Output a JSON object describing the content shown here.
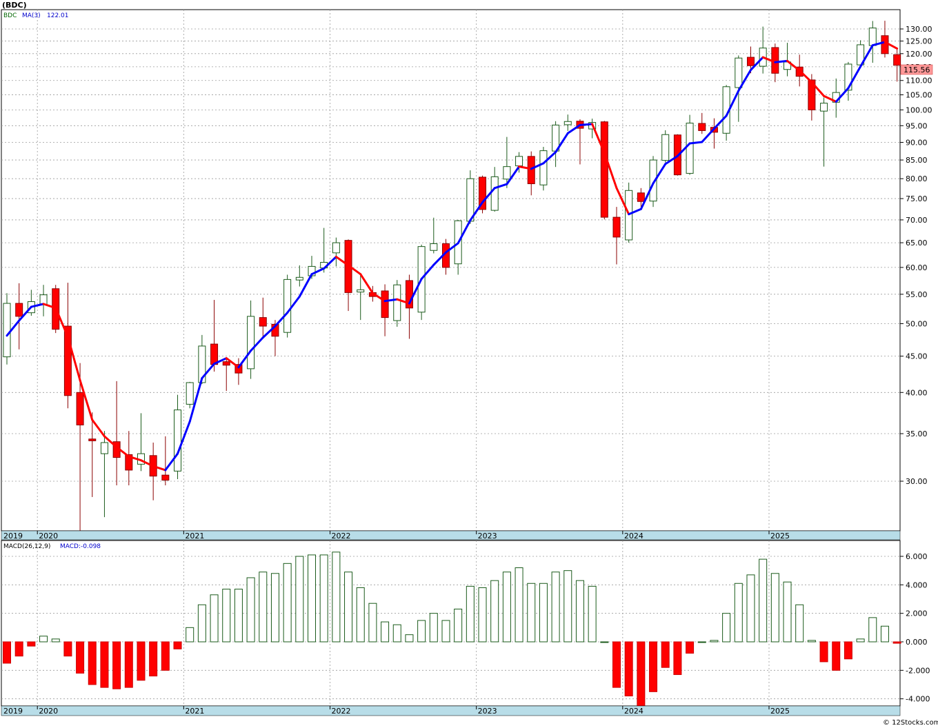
{
  "header": {
    "ticker": "(BDC)",
    "symbol": "BDC",
    "ma_label": "MA(3)",
    "ma_value": "122.01"
  },
  "macd_header": {
    "label": "MACD(26,12,9)",
    "value_label": "MACD:-0.098"
  },
  "last_price": "115.56",
  "footer": "© 12Stocks.com",
  "colors": {
    "up_border": "#1a5a1a",
    "down_fill": "#ff0000",
    "ma_up": "#0000ff",
    "ma_down": "#ff0000",
    "price_tag": "#ff9999",
    "axis_band": "#b8dde8"
  },
  "years": [
    "2019",
    "2020",
    "2021",
    "2022",
    "2023",
    "2024",
    "2025"
  ],
  "chart_data": [
    {
      "type": "candlestick",
      "title": "(BDC)",
      "scale": "log",
      "ylim": [
        25.5,
        137
      ],
      "yticks": [
        "30.00",
        "35.00",
        "40.00",
        "45.00",
        "50.00",
        "55.00",
        "60.00",
        "65.00",
        "70.00",
        "75.00",
        "80.00",
        "85.00",
        "90.00",
        "95.00",
        "100.00",
        "105.00",
        "110.00",
        "115.00",
        "120.00",
        "125.00",
        "130.00"
      ],
      "series": [
        {
          "period": "2019-10",
          "open": 44.9,
          "high": 55.2,
          "low": 43.8,
          "close": 53.4
        },
        {
          "period": "2019-11",
          "open": 53.4,
          "high": 57.0,
          "low": 46.0,
          "close": 51.2
        },
        {
          "period": "2019-12",
          "open": 51.8,
          "high": 55.8,
          "low": 51.3,
          "close": 53.7
        },
        {
          "period": "2020-01",
          "open": 53.2,
          "high": 56.7,
          "low": 51.2,
          "close": 54.9
        },
        {
          "period": "2020-02",
          "open": 56.0,
          "high": 56.7,
          "low": 48.5,
          "close": 49.1
        },
        {
          "period": "2020-03",
          "open": 49.6,
          "high": 57.1,
          "low": 38.0,
          "close": 39.6
        },
        {
          "period": "2020-04",
          "open": 40.0,
          "high": 44.0,
          "low": 25.5,
          "close": 36.0
        },
        {
          "period": "2020-05",
          "open": 34.4,
          "high": 37.5,
          "low": 28.5,
          "close": 34.2
        },
        {
          "period": "2020-06",
          "open": 32.8,
          "high": 35.3,
          "low": 26.7,
          "close": 34.0
        },
        {
          "period": "2020-07",
          "open": 34.1,
          "high": 41.5,
          "low": 29.6,
          "close": 32.4
        },
        {
          "period": "2020-08",
          "open": 32.7,
          "high": 35.3,
          "low": 29.6,
          "close": 31.1
        },
        {
          "period": "2020-09",
          "open": 31.7,
          "high": 37.4,
          "low": 31.0,
          "close": 32.8
        },
        {
          "period": "2020-10",
          "open": 32.6,
          "high": 34.0,
          "low": 28.2,
          "close": 30.5
        },
        {
          "period": "2020-11",
          "open": 30.6,
          "high": 34.7,
          "low": 29.6,
          "close": 30.1
        },
        {
          "period": "2020-12",
          "open": 31.0,
          "high": 39.7,
          "low": 30.2,
          "close": 37.8
        },
        {
          "period": "2021-01",
          "open": 38.5,
          "high": 41.4,
          "low": 38.0,
          "close": 41.3
        },
        {
          "period": "2021-02",
          "open": 41.3,
          "high": 48.2,
          "low": 41.1,
          "close": 46.5
        },
        {
          "period": "2021-03",
          "open": 46.8,
          "high": 54.0,
          "low": 42.8,
          "close": 43.8
        },
        {
          "period": "2021-04",
          "open": 44.2,
          "high": 44.6,
          "low": 40.2,
          "close": 43.7
        },
        {
          "period": "2021-05",
          "open": 43.8,
          "high": 44.7,
          "low": 41.0,
          "close": 42.6
        },
        {
          "period": "2021-06",
          "open": 43.2,
          "high": 53.9,
          "low": 41.8,
          "close": 51.2
        },
        {
          "period": "2021-07",
          "open": 51.0,
          "high": 54.4,
          "low": 47.8,
          "close": 49.6
        },
        {
          "period": "2021-08",
          "open": 49.9,
          "high": 50.6,
          "low": 45.0,
          "close": 48.0
        },
        {
          "period": "2021-09",
          "open": 48.6,
          "high": 58.6,
          "low": 47.8,
          "close": 57.7
        },
        {
          "period": "2021-10",
          "open": 57.6,
          "high": 60.4,
          "low": 56.4,
          "close": 58.1
        },
        {
          "period": "2021-11",
          "open": 58.4,
          "high": 62.3,
          "low": 57.8,
          "close": 60.2
        },
        {
          "period": "2021-12",
          "open": 59.9,
          "high": 68.2,
          "low": 59.0,
          "close": 61.0
        },
        {
          "period": "2022-01",
          "open": 62.9,
          "high": 66.1,
          "low": 60.2,
          "close": 65.0
        },
        {
          "period": "2022-02",
          "open": 65.5,
          "high": 65.7,
          "low": 52.1,
          "close": 55.3
        },
        {
          "period": "2022-03",
          "open": 55.4,
          "high": 58.6,
          "low": 50.6,
          "close": 55.8
        },
        {
          "period": "2022-04",
          "open": 55.3,
          "high": 56.5,
          "low": 53.7,
          "close": 54.6
        },
        {
          "period": "2022-05",
          "open": 55.6,
          "high": 56.8,
          "low": 48.0,
          "close": 51.0
        },
        {
          "period": "2022-06",
          "open": 50.5,
          "high": 57.6,
          "low": 49.5,
          "close": 56.7
        },
        {
          "period": "2022-07",
          "open": 57.5,
          "high": 58.6,
          "low": 47.6,
          "close": 52.6
        },
        {
          "period": "2022-08",
          "open": 51.9,
          "high": 64.6,
          "low": 50.6,
          "close": 64.2
        },
        {
          "period": "2022-09",
          "open": 63.4,
          "high": 70.5,
          "low": 62.8,
          "close": 64.8
        },
        {
          "period": "2022-10",
          "open": 64.8,
          "high": 65.8,
          "low": 58.6,
          "close": 60.0
        },
        {
          "period": "2022-11",
          "open": 60.7,
          "high": 70.0,
          "low": 58.6,
          "close": 69.8
        },
        {
          "period": "2022-12",
          "open": 69.7,
          "high": 82.2,
          "low": 69.1,
          "close": 80.0
        },
        {
          "period": "2023-01",
          "open": 80.4,
          "high": 80.8,
          "low": 71.5,
          "close": 72.4
        },
        {
          "period": "2023-02",
          "open": 72.2,
          "high": 83.1,
          "low": 71.9,
          "close": 80.5
        },
        {
          "period": "2023-03",
          "open": 79.9,
          "high": 91.6,
          "low": 77.6,
          "close": 83.2
        },
        {
          "period": "2023-04",
          "open": 83.4,
          "high": 87.2,
          "low": 81.6,
          "close": 86.0
        },
        {
          "period": "2023-05",
          "open": 86.0,
          "high": 87.4,
          "low": 75.8,
          "close": 78.7
        },
        {
          "period": "2023-06",
          "open": 78.4,
          "high": 88.7,
          "low": 77.0,
          "close": 87.6
        },
        {
          "period": "2023-07",
          "open": 87.5,
          "high": 96.4,
          "low": 83.1,
          "close": 95.2
        },
        {
          "period": "2023-08",
          "open": 95.3,
          "high": 98.5,
          "low": 93.4,
          "close": 96.3
        },
        {
          "period": "2023-09",
          "open": 96.4,
          "high": 97.0,
          "low": 83.8,
          "close": 94.2
        },
        {
          "period": "2023-10",
          "open": 94.0,
          "high": 97.2,
          "low": 91.2,
          "close": 96.0
        },
        {
          "period": "2023-11",
          "open": 96.2,
          "high": 96.5,
          "low": 70.1,
          "close": 70.6
        },
        {
          "period": "2023-12",
          "open": 70.6,
          "high": 73.0,
          "low": 60.6,
          "close": 66.2
        },
        {
          "period": "2024-01",
          "open": 65.6,
          "high": 79.0,
          "low": 65.0,
          "close": 77.0
        },
        {
          "period": "2024-02",
          "open": 76.4,
          "high": 77.6,
          "low": 73.0,
          "close": 74.3
        },
        {
          "period": "2024-03",
          "open": 74.4,
          "high": 86.1,
          "low": 73.0,
          "close": 85.0
        },
        {
          "period": "2024-04",
          "open": 84.9,
          "high": 93.6,
          "low": 84.3,
          "close": 92.3
        },
        {
          "period": "2024-05",
          "open": 92.2,
          "high": 92.4,
          "low": 80.8,
          "close": 81.0
        },
        {
          "period": "2024-06",
          "open": 81.4,
          "high": 98.4,
          "low": 81.0,
          "close": 95.8
        },
        {
          "period": "2024-07",
          "open": 95.7,
          "high": 99.0,
          "low": 92.5,
          "close": 93.5
        },
        {
          "period": "2024-08",
          "open": 94.5,
          "high": 97.3,
          "low": 88.2,
          "close": 93.0
        },
        {
          "period": "2024-09",
          "open": 92.7,
          "high": 108.4,
          "low": 90.5,
          "close": 107.8
        },
        {
          "period": "2024-10",
          "open": 107.5,
          "high": 119.3,
          "low": 96.2,
          "close": 118.3
        },
        {
          "period": "2024-11",
          "open": 118.6,
          "high": 122.8,
          "low": 112.6,
          "close": 115.4
        },
        {
          "period": "2024-12",
          "open": 115.2,
          "high": 131.0,
          "low": 112.5,
          "close": 122.2
        },
        {
          "period": "2025-01",
          "open": 122.4,
          "high": 124.0,
          "low": 109.4,
          "close": 112.6
        },
        {
          "period": "2025-02",
          "open": 114.0,
          "high": 124.3,
          "low": 111.5,
          "close": 116.8
        },
        {
          "period": "2025-03",
          "open": 114.9,
          "high": 119.6,
          "low": 107.9,
          "close": 111.5
        },
        {
          "period": "2025-04",
          "open": 110.2,
          "high": 112.3,
          "low": 96.6,
          "close": 100.0
        },
        {
          "period": "2025-05",
          "open": 99.6,
          "high": 104.1,
          "low": 83.2,
          "close": 102.2
        },
        {
          "period": "2025-06",
          "open": 102.5,
          "high": 110.7,
          "low": 97.5,
          "close": 105.8
        },
        {
          "period": "2025-07",
          "open": 106.6,
          "high": 116.8,
          "low": 103.0,
          "close": 116.0
        },
        {
          "period": "2025-08",
          "open": 115.7,
          "high": 125.3,
          "low": 115.1,
          "close": 123.5
        },
        {
          "period": "2025-09",
          "open": 123.2,
          "high": 133.4,
          "low": 116.5,
          "close": 130.4
        },
        {
          "period": "2025-10",
          "open": 127.2,
          "high": 133.5,
          "low": 118.5,
          "close": 120.0
        },
        {
          "period": "2025-11",
          "open": 119.6,
          "high": 121.6,
          "low": 109.6,
          "close": 115.56
        }
      ],
      "ma3": [
        48.1,
        50.5,
        52.8,
        53.3,
        52.6,
        47.9,
        41.6,
        36.6,
        34.7,
        33.5,
        32.5,
        32.1,
        31.5,
        31.1,
        32.8,
        36.4,
        41.9,
        43.9,
        44.7,
        43.4,
        45.8,
        47.8,
        49.6,
        51.8,
        54.6,
        58.7,
        59.8,
        62.1,
        60.4,
        58.7,
        55.2,
        53.8,
        54.1,
        53.4,
        57.8,
        60.5,
        63.0,
        64.9,
        69.9,
        74.1,
        77.6,
        78.6,
        83.2,
        82.6,
        84.1,
        87.2,
        92.7,
        95.2,
        95.5,
        87.0,
        77.6,
        71.3,
        72.5,
        78.8,
        83.9,
        86.1,
        89.7,
        90.1,
        94.1,
        98.1,
        106.4,
        113.8,
        118.6,
        116.7,
        117.2,
        113.6,
        109.4,
        104.6,
        102.7,
        107.3,
        115.1,
        123.3,
        124.6,
        122.0
      ]
    },
    {
      "type": "bar",
      "title": "MACD(26,12,9)",
      "ylim": [
        -4.5,
        6.5
      ],
      "yticks": [
        "-4.000",
        "-2.000",
        "0.000",
        "2.000",
        "4.000",
        "6.000"
      ],
      "values": [
        -1.5,
        -1.0,
        -0.3,
        0.4,
        0.2,
        -1.0,
        -2.2,
        -3.0,
        -3.2,
        -3.3,
        -3.2,
        -2.7,
        -2.4,
        -2.0,
        -0.5,
        1.0,
        2.6,
        3.3,
        3.7,
        3.7,
        4.5,
        4.9,
        4.8,
        5.5,
        6.0,
        6.1,
        6.1,
        6.3,
        4.9,
        3.8,
        2.7,
        1.4,
        1.2,
        0.5,
        1.5,
        2.0,
        1.5,
        2.3,
        3.9,
        3.8,
        4.3,
        4.9,
        5.2,
        4.1,
        4.1,
        4.9,
        5.0,
        4.3,
        3.9,
        0.0,
        -3.2,
        -3.8,
        -4.5,
        -3.5,
        -1.8,
        -2.3,
        -0.8,
        0.0,
        0.1,
        2.0,
        4.1,
        4.7,
        5.8,
        4.8,
        4.2,
        2.6,
        0.1,
        -1.4,
        -2.0,
        -1.2,
        0.2,
        1.7,
        1.1,
        -0.1
      ]
    }
  ]
}
